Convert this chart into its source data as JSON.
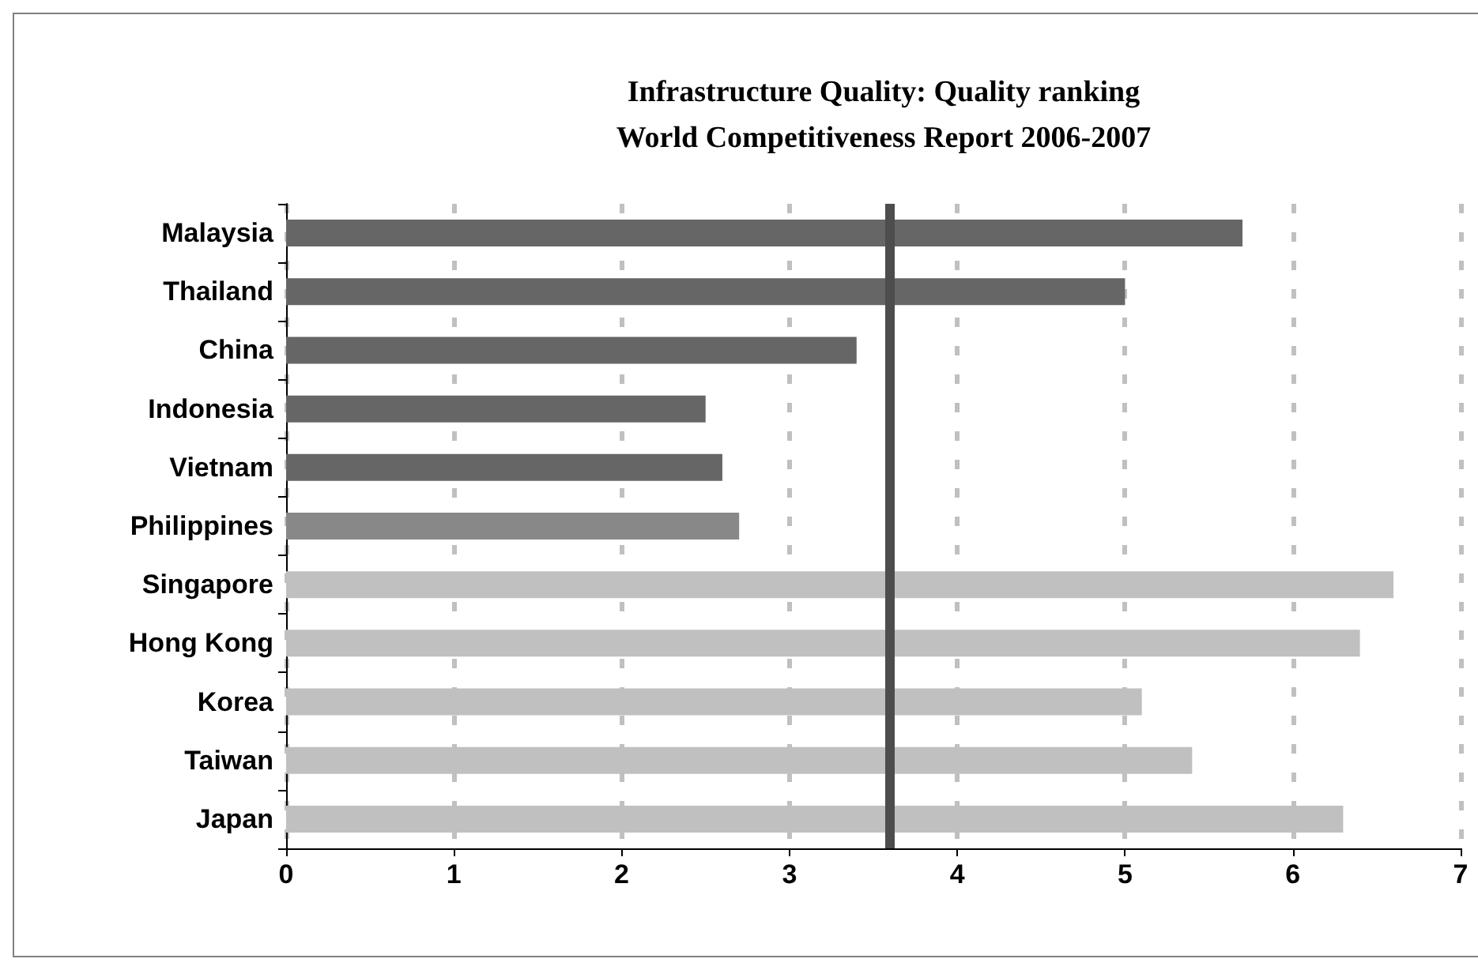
{
  "chart_data": {
    "type": "bar",
    "orientation": "horizontal",
    "title": "Infrastructure Quality: Quality ranking\nWorld Competitiveness Report 2006-2007",
    "categories": [
      "Malaysia",
      "Thailand",
      "China",
      "Indonesia",
      "Vietnam",
      "Philippines",
      "Singapore",
      "Hong Kong",
      "Korea",
      "Taiwan",
      "Japan"
    ],
    "values": [
      5.7,
      5.0,
      3.4,
      2.5,
      2.6,
      2.7,
      6.6,
      6.4,
      5.1,
      5.4,
      6.3
    ],
    "colors": [
      "#666666",
      "#666666",
      "#666666",
      "#666666",
      "#666666",
      "#888888",
      "#c0c0c0",
      "#c0c0c0",
      "#c0c0c0",
      "#c0c0c0",
      "#c0c0c0"
    ],
    "xlim": [
      0,
      7
    ],
    "xticks": [
      0,
      1,
      2,
      3,
      4,
      5,
      6,
      7
    ],
    "grid": "x",
    "ref_lines": [
      {
        "axis": "x",
        "value": 3.6,
        "color": "#4d4d4d"
      }
    ]
  }
}
